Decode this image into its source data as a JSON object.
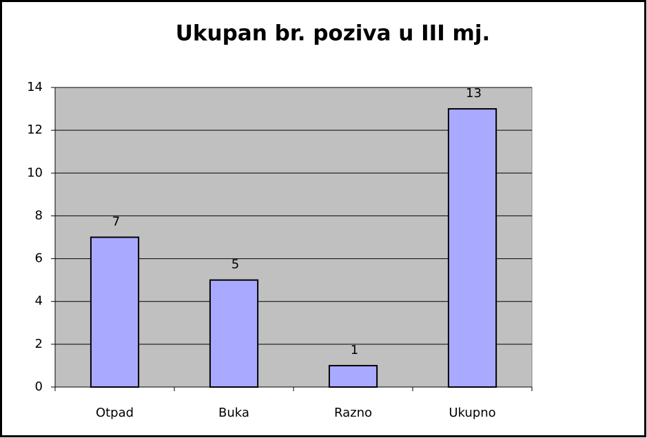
{
  "chart_data": {
    "type": "bar",
    "title": "Ukupan br. poziva u III mj.",
    "categories": [
      "Otpad",
      "Buka",
      "Razno",
      "Ukupno"
    ],
    "values": [
      7,
      5,
      1,
      13
    ],
    "color": "#a9aaff",
    "ylim": [
      0,
      14
    ],
    "yticks": [
      0,
      2,
      4,
      6,
      8,
      10,
      12,
      14
    ],
    "grid": true
  }
}
